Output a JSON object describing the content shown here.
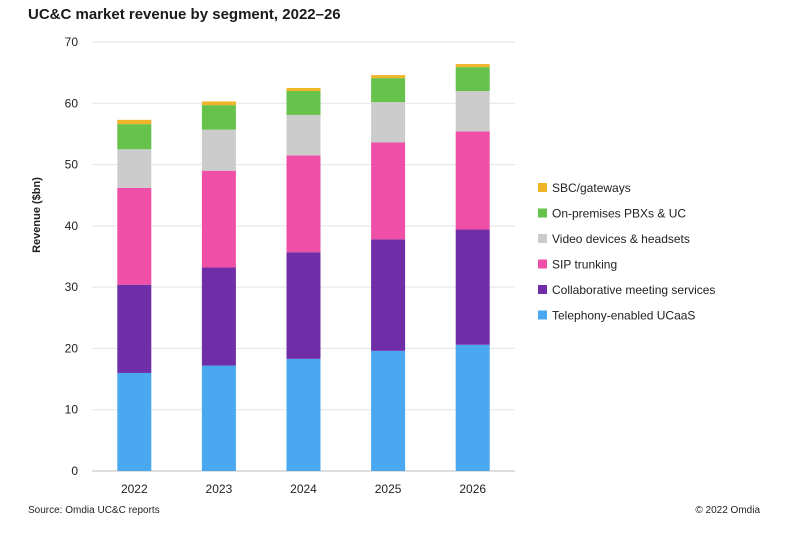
{
  "title": "UC&C market revenue by segment, 2022–26",
  "source": "Source: Omdia UC&C reports",
  "copyright": "© 2022 Omdia",
  "chart_data": {
    "type": "bar",
    "stacked": true,
    "title": "UC&C market revenue by segment, 2022–26",
    "ylabel": "Revenue ($bn)",
    "xlabel": "",
    "ylim": [
      0,
      70
    ],
    "yticks": [
      0,
      10,
      20,
      30,
      40,
      50,
      60,
      70
    ],
    "grid": true,
    "legend_position": "right",
    "categories": [
      "2022",
      "2023",
      "2024",
      "2025",
      "2026"
    ],
    "series": [
      {
        "name": "Telephony-enabled UCaaS",
        "color": "#4aa8f0",
        "values": [
          16.0,
          17.2,
          18.3,
          19.6,
          20.6
        ]
      },
      {
        "name": "Collaborative meeting services",
        "color": "#6f2da8",
        "values": [
          14.4,
          16.0,
          17.4,
          18.2,
          18.8
        ]
      },
      {
        "name": "SIP trunking",
        "color": "#f04fa8",
        "values": [
          15.8,
          15.8,
          15.8,
          15.8,
          16.0
        ]
      },
      {
        "name": "Video devices & headsets",
        "color": "#cccccc",
        "values": [
          6.3,
          6.7,
          6.6,
          6.6,
          6.6
        ]
      },
      {
        "name": "On-premises PBXs & UC",
        "color": "#66c24a",
        "values": [
          4.1,
          4.0,
          3.9,
          3.9,
          3.9
        ]
      },
      {
        "name": "SBC/gateways",
        "color": "#f0b429",
        "values": [
          0.7,
          0.6,
          0.5,
          0.5,
          0.5
        ]
      }
    ]
  }
}
